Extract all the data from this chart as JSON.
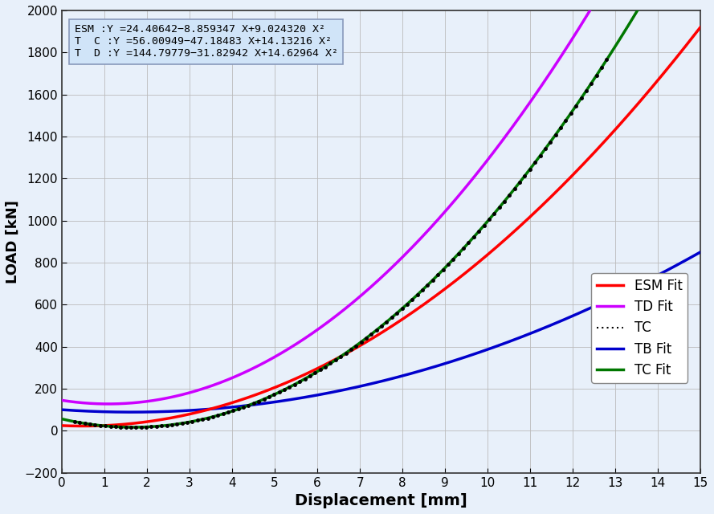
{
  "title": "",
  "xlabel": "Displacement [mm]",
  "ylabel": "LOAD [kN]",
  "xlim": [
    0,
    15
  ],
  "ylim": [
    -200,
    2000
  ],
  "xticks": [
    0,
    1,
    2,
    3,
    4,
    5,
    6,
    7,
    8,
    9,
    10,
    11,
    12,
    13,
    14,
    15
  ],
  "yticks": [
    -200,
    0,
    200,
    400,
    600,
    800,
    1000,
    1200,
    1400,
    1600,
    1800,
    2000
  ],
  "annotation_lines": [
    "ESM :Y =24.40642−8.859347 X+9.024320 X²",
    "T  C :Y =56.00949−47.18483 X+14.13216 X²",
    "T  D :Y =144.79779−31.82942 X+14.62964 X²"
  ],
  "ESM_coeffs": [
    24.40642,
    -8.859347,
    9.02432
  ],
  "TC_coeffs": [
    56.00949,
    -47.18483,
    14.13216
  ],
  "TD_coeffs": [
    144.79779,
    -31.82942,
    14.62964
  ],
  "TB_coeffs": [
    100.0,
    -14.0,
    4.27
  ],
  "TCfit_coeffs": [
    56.00949,
    -47.18483,
    14.13216
  ],
  "colors": {
    "ESM": "#FF0000",
    "TD": "#CC00FF",
    "TC_dot": "#000000",
    "TB": "#0000CC",
    "TCfit": "#007700"
  },
  "legend_items": [
    "ESM Fit",
    "TD Fit",
    "TC",
    "TB Fit",
    "TC Fit"
  ],
  "background_color": "#E8F0FA",
  "grid_color": "#BBBBBB",
  "annotation_box_color": "#D0E4F8",
  "annotation_border_color": "#8899BB"
}
